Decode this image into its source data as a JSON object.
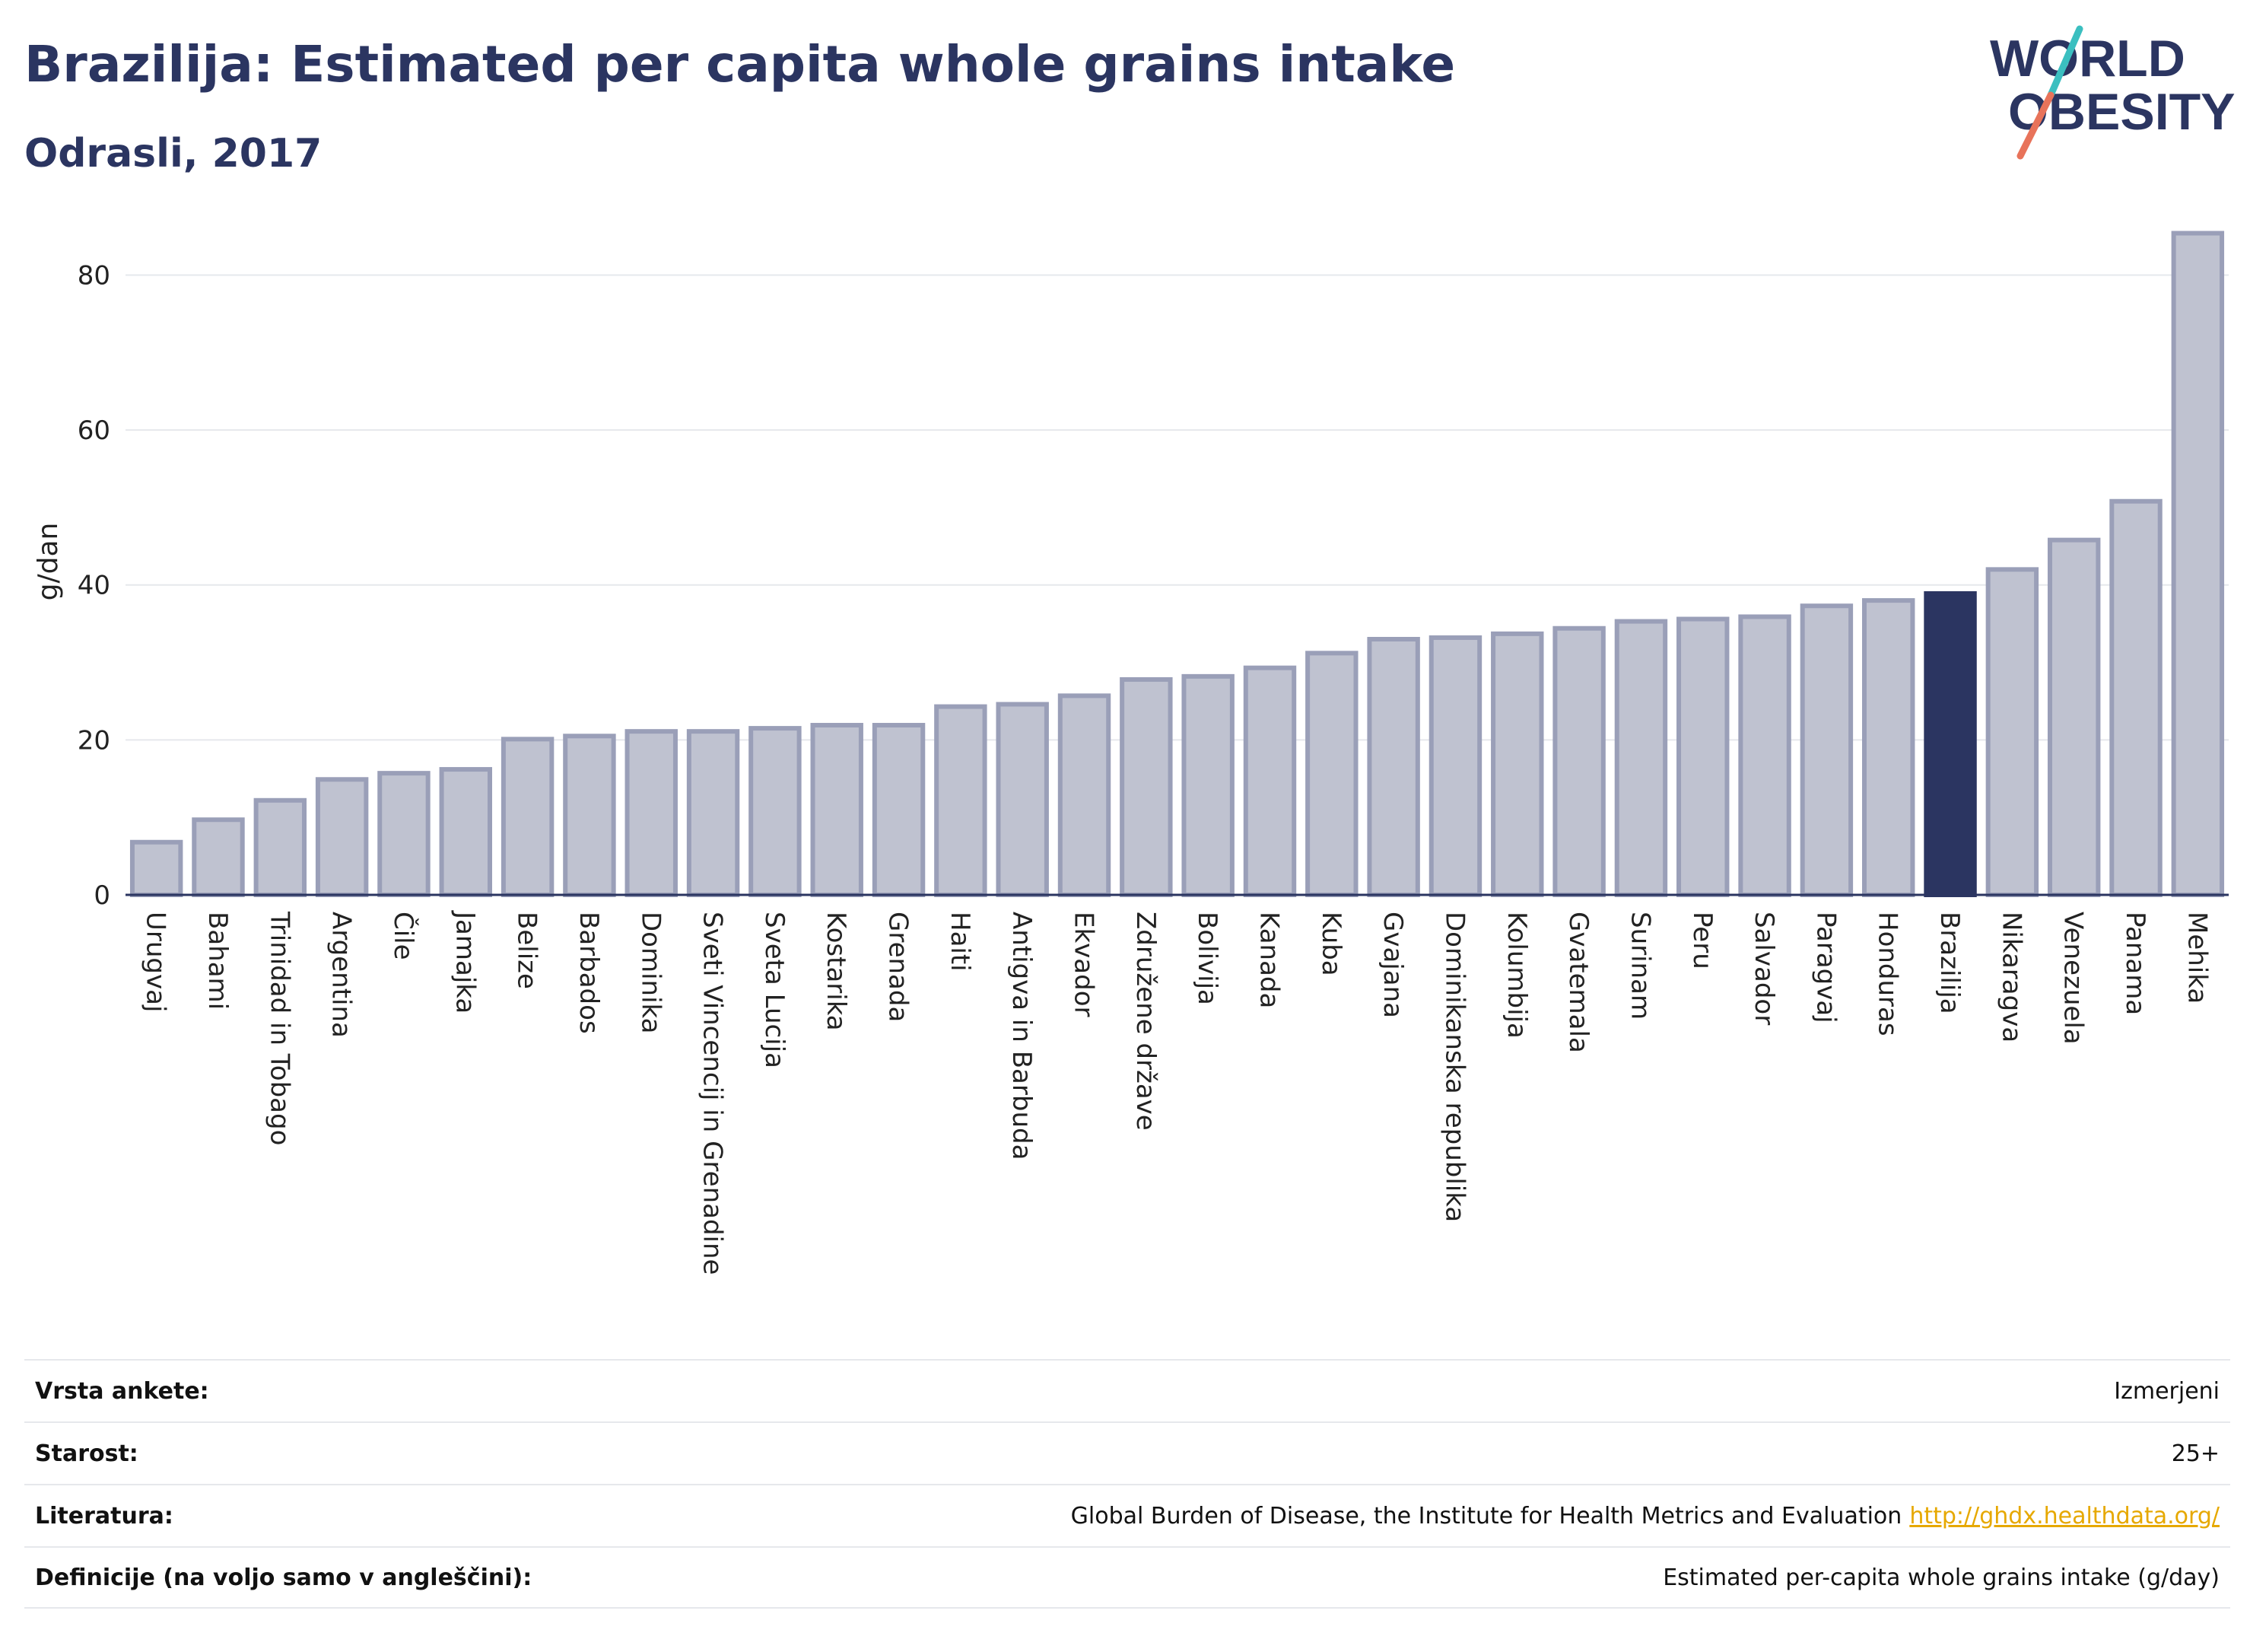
{
  "header": {
    "title": "Brazilija: Estimated per capita whole grains intake",
    "subtitle": "Odrasli, 2017"
  },
  "logo": {
    "line1": "WORLD",
    "line2": "OBESITY"
  },
  "chart_data": {
    "type": "bar",
    "ylabel": "g/dan",
    "ylim": [
      0,
      88
    ],
    "yticks": [
      0,
      20,
      40,
      60,
      80
    ],
    "grid": true,
    "highlight": "Brazilija",
    "colors": {
      "bar": "#bfc2d0",
      "bar_stroke": "#9a9fb8",
      "highlight": "#2b3561"
    },
    "categories": [
      "Urugvaj",
      "Bahami",
      "Trinidad in Tobago",
      "Argentina",
      "Čile",
      "Jamajka",
      "Belize",
      "Barbados",
      "Dominika",
      "Sveti Vincencij in Grenadine",
      "Sveta Lucija",
      "Kostarika",
      "Grenada",
      "Haiti",
      "Antigva in Barbuda",
      "Ekvador",
      "Združene države",
      "Bolivija",
      "Kanada",
      "Kuba",
      "Gvajana",
      "Dominikanska republika",
      "Kolumbija",
      "Gvatemala",
      "Surinam",
      "Peru",
      "Salvador",
      "Paragvaj",
      "Honduras",
      "Brazilija",
      "Nikaragva",
      "Venezuela",
      "Panama",
      "Mehika"
    ],
    "values": [
      6.8,
      9.7,
      12.2,
      14.9,
      15.7,
      16.2,
      20.1,
      20.5,
      21.1,
      21.1,
      21.5,
      21.9,
      21.9,
      24.3,
      24.6,
      25.7,
      27.8,
      28.2,
      29.3,
      31.2,
      33.0,
      33.2,
      33.7,
      34.4,
      35.3,
      35.6,
      35.9,
      37.3,
      38.0,
      38.9,
      42.0,
      45.8,
      50.8,
      85.4
    ]
  },
  "meta": {
    "rows": [
      {
        "label": "Vrsta ankete:",
        "value": "Izmerjeni"
      },
      {
        "label": "Starost:",
        "value": "25+"
      },
      {
        "label": "Literatura:",
        "value": "Global Burden of Disease, the Institute for Health Metrics and Evaluation",
        "link": "http://ghdx.healthdata.org/"
      },
      {
        "label": "Definicije (na voljo samo v angleščini):",
        "value": "Estimated per-capita whole grains intake (g/day)"
      }
    ]
  }
}
